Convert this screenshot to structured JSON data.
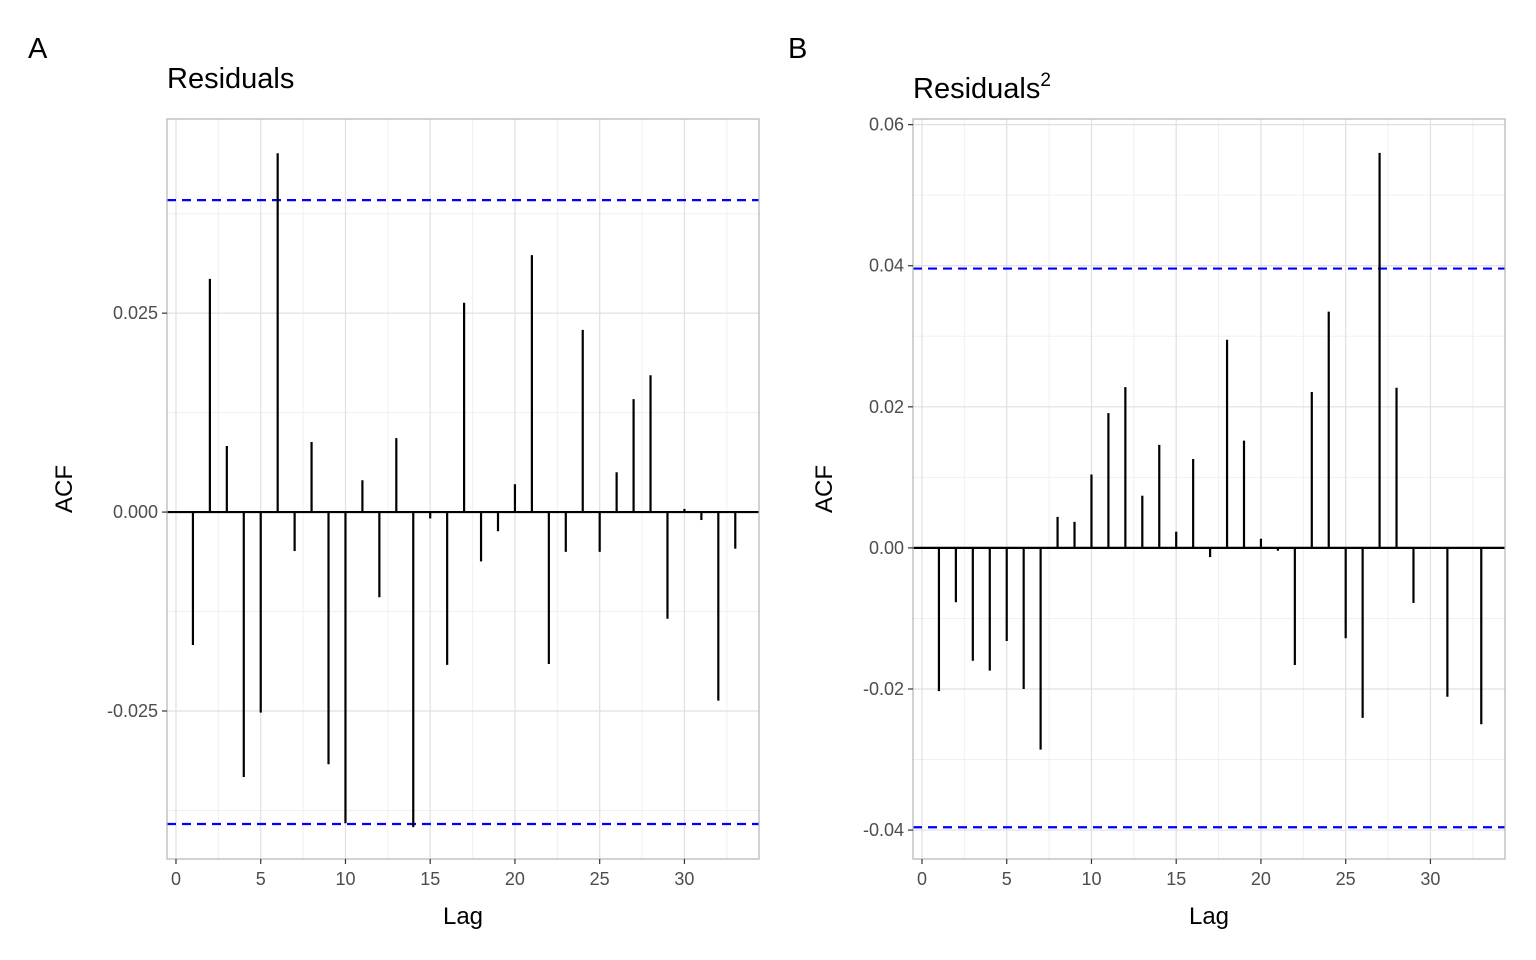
{
  "chart_data": [
    {
      "type": "bar",
      "tag": "A",
      "title": "Residuals",
      "title_sup": "",
      "xlabel": "Lag",
      "ylabel": "ACF",
      "xlim": [
        -0.53,
        34.4
      ],
      "ylim": [
        -0.0436,
        0.0494
      ],
      "xticks": [
        0,
        5,
        10,
        15,
        20,
        25,
        30
      ],
      "xtick_labels": [
        "0",
        "5",
        "10",
        "15",
        "20",
        "25",
        "30"
      ],
      "yticks": [
        -0.025,
        0,
        0.025
      ],
      "ytick_labels": [
        "-0.025",
        "0.000",
        "0.025"
      ],
      "ci": 0.0392,
      "ci_color": "#0000ff",
      "grid": true,
      "x": [
        1,
        2,
        3,
        4,
        5,
        6,
        7,
        8,
        9,
        10,
        11,
        12,
        13,
        14,
        15,
        16,
        17,
        18,
        19,
        20,
        21,
        22,
        23,
        24,
        25,
        26,
        27,
        28,
        29,
        30,
        31,
        32,
        33
      ],
      "values": [
        -0.0167,
        0.0293,
        0.0083,
        -0.0333,
        -0.0252,
        0.0451,
        -0.0049,
        0.0088,
        -0.0317,
        -0.0391,
        0.004,
        -0.0107,
        0.0093,
        -0.0396,
        -0.0008,
        -0.0192,
        0.0263,
        -0.0062,
        -0.0024,
        0.0035,
        0.0323,
        -0.0191,
        -0.005,
        0.0229,
        -0.005,
        0.005,
        0.0142,
        0.0172,
        -0.0134,
        0.0004,
        -0.001,
        -0.0237,
        -0.0046
      ]
    },
    {
      "type": "bar",
      "tag": "B",
      "title": "Residuals",
      "title_sup": "2",
      "xlabel": "Lag",
      "ylabel": "ACF",
      "xlim": [
        -0.53,
        34.4
      ],
      "ylim": [
        -0.0441,
        0.0608
      ],
      "xticks": [
        0,
        5,
        10,
        15,
        20,
        25,
        30
      ],
      "xtick_labels": [
        "0",
        "5",
        "10",
        "15",
        "20",
        "25",
        "30"
      ],
      "yticks": [
        -0.04,
        -0.02,
        0,
        0.02,
        0.04,
        0.06
      ],
      "ytick_labels": [
        "-0.04",
        "-0.02",
        "0.00",
        "0.02",
        "0.04",
        "0.06"
      ],
      "ci": 0.0396,
      "ci_color": "#0000ff",
      "grid": true,
      "x": [
        1,
        2,
        3,
        4,
        5,
        6,
        7,
        8,
        9,
        10,
        11,
        12,
        13,
        14,
        15,
        16,
        17,
        18,
        19,
        20,
        21,
        22,
        23,
        24,
        25,
        26,
        27,
        28,
        29,
        30,
        31,
        32,
        33
      ],
      "values": [
        -0.0203,
        -0.0077,
        -0.016,
        -0.0174,
        -0.0132,
        -0.02,
        -0.0286,
        0.0044,
        0.0037,
        0.0104,
        0.0191,
        0.0228,
        0.0074,
        0.0146,
        0.0023,
        0.0126,
        -0.0013,
        0.0295,
        0.0152,
        0.0013,
        -0.0004,
        -0.0166,
        0.0221,
        0.0335,
        -0.0128,
        -0.0241,
        0.056,
        0.0227,
        -0.0078,
        0.0,
        -0.0211,
        0.0,
        -0.025
      ]
    }
  ]
}
